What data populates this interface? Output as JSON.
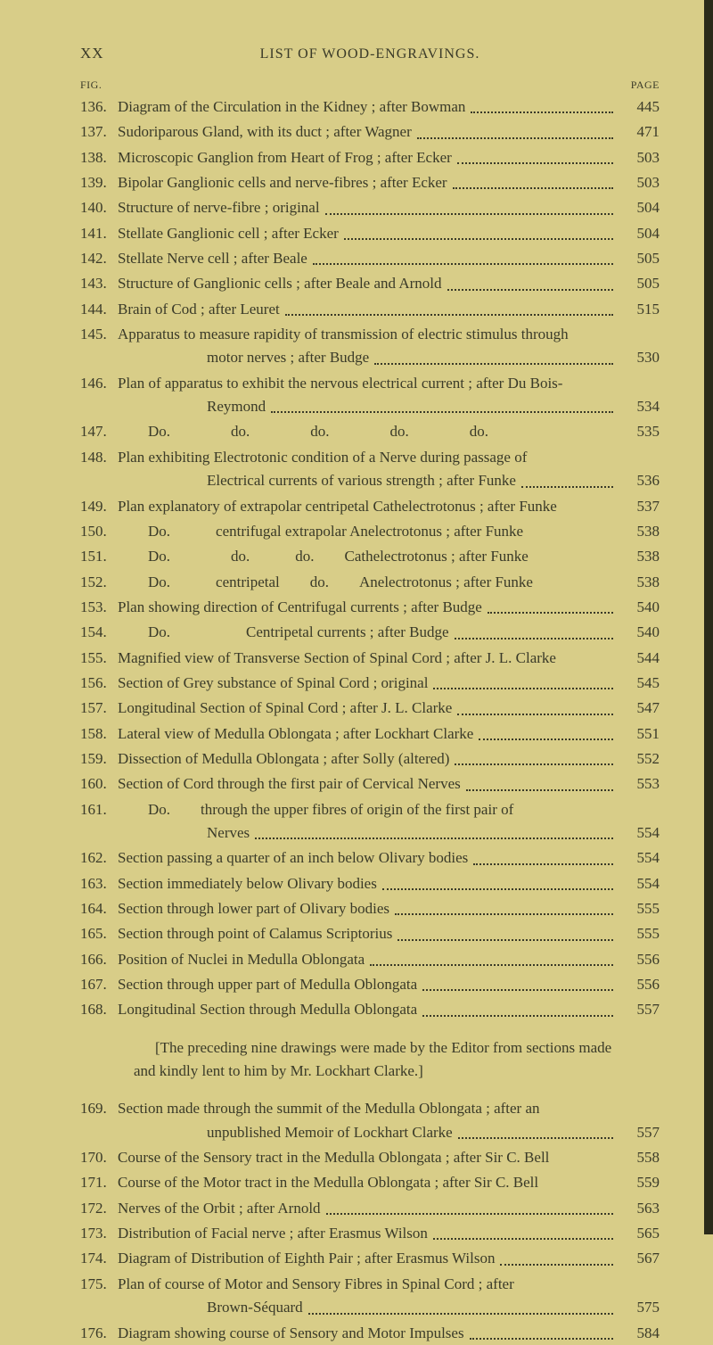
{
  "header": {
    "roman": "XX",
    "title": "LIST OF WOOD-ENGRAVINGS."
  },
  "labels": {
    "fig": "FIG.",
    "page": "PAGE"
  },
  "note": "[The preceding nine drawings were made by the Editor from sections made and kindly lent to him by Mr. Lockhart Clarke.]",
  "entries": [
    {
      "fig": "136.",
      "lines": [
        "Diagram of the Circulation in the Kidney ; after Bowman"
      ],
      "page": "445"
    },
    {
      "fig": "137.",
      "lines": [
        "Sudoriparous Gland, with its duct ; after Wagner"
      ],
      "page": "471"
    },
    {
      "fig": "138.",
      "lines": [
        "Microscopic Ganglion from Heart of Frog ; after Ecker"
      ],
      "page": "503"
    },
    {
      "fig": "139.",
      "lines": [
        "Bipolar Ganglionic cells and nerve-fibres ; after Ecker"
      ],
      "page": "503"
    },
    {
      "fig": "140.",
      "lines": [
        "Structure of nerve-fibre ; original"
      ],
      "page": "504"
    },
    {
      "fig": "141.",
      "lines": [
        "Stellate Ganglionic cell ; after Ecker"
      ],
      "page": "504"
    },
    {
      "fig": "142.",
      "lines": [
        "Stellate Nerve cell ; after Beale"
      ],
      "page": "505"
    },
    {
      "fig": "143.",
      "lines": [
        "Structure of Ganglionic cells ; after Beale and Arnold"
      ],
      "page": "505"
    },
    {
      "fig": "144.",
      "lines": [
        "Brain of Cod ; after Leuret"
      ],
      "page": "515"
    },
    {
      "fig": "145.",
      "lines": [
        "Apparatus to measure rapidity of transmission of electric stimulus through",
        "motor nerves ; after Budge"
      ],
      "page": "530",
      "cont": true
    },
    {
      "fig": "146.",
      "lines": [
        "Plan of apparatus to exhibit the nervous electrical current ; after Du Bois-",
        "Reymond"
      ],
      "page": "534",
      "cont": true
    },
    {
      "fig": "147.",
      "lines": [
        "  Do.    do.    do.    do.    do."
      ],
      "page": "535",
      "nodots": true
    },
    {
      "fig": "148.",
      "lines": [
        "Plan exhibiting Electrotonic condition of a Nerve during passage of",
        "Electrical currents of various strength ; after Funke"
      ],
      "page": "536",
      "cont": true
    },
    {
      "fig": "149.",
      "lines": [
        "Plan explanatory of extrapolar centripetal Cathelectrotonus ; after Funke"
      ],
      "page": "537",
      "nodots": true
    },
    {
      "fig": "150.",
      "lines": [
        "  Do.   centrifugal extrapolar Anelectrotonus ; after Funke"
      ],
      "page": "538",
      "nodots": true
    },
    {
      "fig": "151.",
      "lines": [
        "  Do.    do.   do.  Cathelectrotonus ; after Funke"
      ],
      "page": "538",
      "nodots": true
    },
    {
      "fig": "152.",
      "lines": [
        "  Do.   centripetal  do.  Anelectrotonus ; after Funke"
      ],
      "page": "538",
      "nodots": true
    },
    {
      "fig": "153.",
      "lines": [
        "Plan showing direction of Centrifugal currents ; after Budge"
      ],
      "page": "540"
    },
    {
      "fig": "154.",
      "lines": [
        "  Do.     Centripetal currents ; after Budge"
      ],
      "page": "540"
    },
    {
      "fig": "155.",
      "lines": [
        "Magnified view of Transverse Section of Spinal Cord ; after J. L. Clarke"
      ],
      "page": "544",
      "nodots": true
    },
    {
      "fig": "156.",
      "lines": [
        "Section of Grey substance of Spinal Cord ; original"
      ],
      "page": "545"
    },
    {
      "fig": "157.",
      "lines": [
        "Longitudinal Section of Spinal Cord ; after J. L. Clarke"
      ],
      "page": "547"
    },
    {
      "fig": "158.",
      "lines": [
        "Lateral view of Medulla Oblongata ; after Lockhart Clarke"
      ],
      "page": "551"
    },
    {
      "fig": "159.",
      "lines": [
        "Dissection of Medulla Oblongata ; after Solly (altered)"
      ],
      "page": "552"
    },
    {
      "fig": "160.",
      "lines": [
        "Section of Cord through the first pair of Cervical Nerves"
      ],
      "page": "553"
    },
    {
      "fig": "161.",
      "lines": [
        "  Do.  through the upper fibres of origin of the first pair of",
        "Nerves"
      ],
      "page": "554",
      "cont": true
    },
    {
      "fig": "162.",
      "lines": [
        "Section passing a quarter of an inch below Olivary bodies"
      ],
      "page": "554"
    },
    {
      "fig": "163.",
      "lines": [
        "Section immediately below Olivary bodies"
      ],
      "page": "554"
    },
    {
      "fig": "164.",
      "lines": [
        "Section through lower part of Olivary bodies"
      ],
      "page": "555"
    },
    {
      "fig": "165.",
      "lines": [
        "Section through point of Calamus Scriptorius"
      ],
      "page": "555"
    },
    {
      "fig": "166.",
      "lines": [
        "Position of Nuclei in Medulla Oblongata"
      ],
      "page": "556"
    },
    {
      "fig": "167.",
      "lines": [
        "Section through upper part of Medulla Oblongata"
      ],
      "page": "556"
    },
    {
      "fig": "168.",
      "lines": [
        "Longitudinal Section through Medulla Oblongata"
      ],
      "page": "557"
    }
  ],
  "entries2": [
    {
      "fig": "169.",
      "lines": [
        "Section made through the summit of the Medulla Oblongata ; after an",
        "unpublished Memoir of Lockhart Clarke"
      ],
      "page": "557",
      "cont": true
    },
    {
      "fig": "170.",
      "lines": [
        "Course of the Sensory tract in the Medulla Oblongata ; after Sir C. Bell"
      ],
      "page": "558",
      "nodots": true
    },
    {
      "fig": "171.",
      "lines": [
        "Course of the Motor tract in the Medulla Oblongata ; after Sir C. Bell"
      ],
      "page": "559",
      "nodots": true
    },
    {
      "fig": "172.",
      "lines": [
        "Nerves of the Orbit ; after Arnold"
      ],
      "page": "563"
    },
    {
      "fig": "173.",
      "lines": [
        "Distribution of Facial nerve ; after Erasmus Wilson"
      ],
      "page": "565"
    },
    {
      "fig": "174.",
      "lines": [
        "Diagram of Distribution of Eighth Pair ; after Erasmus Wilson"
      ],
      "page": "567"
    },
    {
      "fig": "175.",
      "lines": [
        "Plan of course of Motor and Sensory Fibres in Spinal Cord ; after",
        "Brown-Séquard"
      ],
      "page": "575",
      "cont": true
    },
    {
      "fig": "176.",
      "lines": [
        "Diagram showing course of Sensory and Motor Impulses"
      ],
      "page": "584"
    }
  ]
}
